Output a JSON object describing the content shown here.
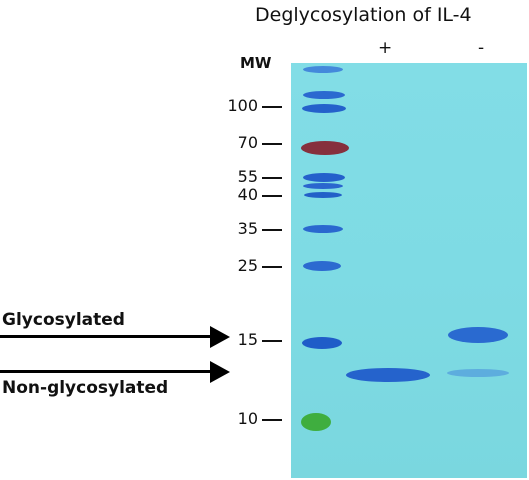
{
  "title": "Deglycosylation of IL-4",
  "lanes": {
    "plus": "+",
    "minus": "-"
  },
  "mw_label": "MW",
  "markers": [
    "100",
    "70",
    "55",
    "40",
    "35",
    "25",
    "15",
    "10"
  ],
  "callouts": {
    "glycosylated": "Glycosylated",
    "non_glycosylated": "Non-glycosylated"
  },
  "colors": {
    "gel": "#80dae3",
    "band_blue": "#1f5fc8",
    "band_red": "#8a2a3a",
    "band_green": "#3fae3f"
  }
}
